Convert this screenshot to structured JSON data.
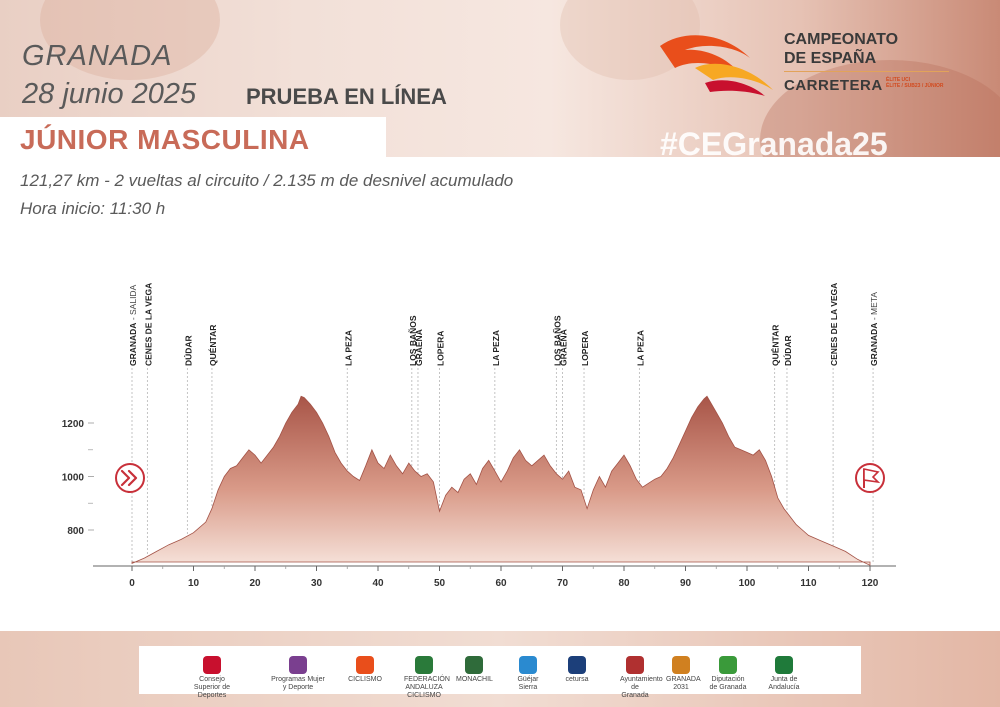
{
  "header": {
    "city": "GRANADA",
    "date": "28 junio 2025",
    "race": "PRUEBA EN LÍNEA",
    "category": "JÚNIOR MASCULINA",
    "hashtag": "#CEGranada25",
    "logo": {
      "line1": "CAMPEONATO",
      "line2": "DE ESPAÑA",
      "line3": "CARRETERA",
      "line4a": "ÉLITE UCI",
      "line4b": "ÉLITE / SUB23 / JÚNIOR"
    },
    "info_distance": "121,27 km - 2 vueltas al circuito / 2.135 m de desnivel acumulado",
    "info_start": "Hora inicio: 11:30 h"
  },
  "colors": {
    "accent": "#c86b58",
    "profile_dark": "#a85548",
    "profile_light": "#f2d6cc",
    "marker": "#c8303a"
  },
  "chart_data": {
    "type": "area",
    "title": "",
    "xlabel": "",
    "ylabel": "",
    "xlim": [
      0,
      125
    ],
    "ylim": [
      660,
      1400
    ],
    "xticks": [
      "0",
      "10",
      "20",
      "30",
      "40",
      "50",
      "60",
      "70",
      "80",
      "90",
      "100",
      "110",
      "120"
    ],
    "yticks": [
      "800",
      "1000",
      "1200"
    ],
    "series": [
      {
        "points": [
          [
            0,
            675
          ],
          [
            2,
            695
          ],
          [
            4,
            720
          ],
          [
            6,
            745
          ],
          [
            8,
            765
          ],
          [
            10,
            790
          ],
          [
            12,
            830
          ],
          [
            13,
            880
          ],
          [
            14,
            950
          ],
          [
            15,
            1000
          ],
          [
            16,
            1030
          ],
          [
            17,
            1040
          ],
          [
            18,
            1070
          ],
          [
            19,
            1100
          ],
          [
            20,
            1080
          ],
          [
            21,
            1050
          ],
          [
            22,
            1080
          ],
          [
            23,
            1110
          ],
          [
            24,
            1150
          ],
          [
            25,
            1200
          ],
          [
            26,
            1240
          ],
          [
            27,
            1270
          ],
          [
            27.5,
            1300
          ],
          [
            28,
            1295
          ],
          [
            29,
            1270
          ],
          [
            30,
            1240
          ],
          [
            31,
            1200
          ],
          [
            32,
            1150
          ],
          [
            33,
            1090
          ],
          [
            34,
            1050
          ],
          [
            35,
            1020
          ],
          [
            36,
            1000
          ],
          [
            37,
            985
          ],
          [
            38,
            1040
          ],
          [
            39,
            1100
          ],
          [
            40,
            1050
          ],
          [
            41,
            1030
          ],
          [
            42,
            1080
          ],
          [
            43,
            1040
          ],
          [
            44,
            1010
          ],
          [
            45,
            1050
          ],
          [
            46,
            1020
          ],
          [
            47,
            1000
          ],
          [
            48,
            1010
          ],
          [
            49,
            980
          ],
          [
            50,
            870
          ],
          [
            51,
            930
          ],
          [
            52,
            960
          ],
          [
            53,
            940
          ],
          [
            54,
            990
          ],
          [
            55,
            1010
          ],
          [
            56,
            970
          ],
          [
            57,
            1030
          ],
          [
            58,
            1060
          ],
          [
            59,
            1020
          ],
          [
            60,
            980
          ],
          [
            61,
            1020
          ],
          [
            62,
            1070
          ],
          [
            63,
            1100
          ],
          [
            64,
            1060
          ],
          [
            65,
            1040
          ],
          [
            66,
            1060
          ],
          [
            67,
            1080
          ],
          [
            68,
            1040
          ],
          [
            69,
            1010
          ],
          [
            70,
            990
          ],
          [
            71,
            1020
          ],
          [
            72,
            960
          ],
          [
            73,
            950
          ],
          [
            74,
            880
          ],
          [
            75,
            950
          ],
          [
            76,
            1000
          ],
          [
            77,
            960
          ],
          [
            78,
            1020
          ],
          [
            79,
            1050
          ],
          [
            80,
            1080
          ],
          [
            81,
            1040
          ],
          [
            82,
            990
          ],
          [
            83,
            960
          ],
          [
            84,
            975
          ],
          [
            85,
            990
          ],
          [
            86,
            1000
          ],
          [
            87,
            1030
          ],
          [
            88,
            1070
          ],
          [
            89,
            1120
          ],
          [
            90,
            1170
          ],
          [
            91,
            1220
          ],
          [
            92,
            1260
          ],
          [
            93,
            1290
          ],
          [
            93.5,
            1300
          ],
          [
            94,
            1280
          ],
          [
            95,
            1240
          ],
          [
            96,
            1200
          ],
          [
            97,
            1150
          ],
          [
            98,
            1110
          ],
          [
            99,
            1100
          ],
          [
            100,
            1090
          ],
          [
            101,
            1080
          ],
          [
            102,
            1100
          ],
          [
            103,
            1060
          ],
          [
            104,
            1000
          ],
          [
            105,
            920
          ],
          [
            106,
            880
          ],
          [
            107,
            850
          ],
          [
            108,
            820
          ],
          [
            109,
            800
          ],
          [
            110,
            780
          ],
          [
            112,
            760
          ],
          [
            114,
            740
          ],
          [
            116,
            720
          ],
          [
            118,
            690
          ],
          [
            120,
            668
          ]
        ]
      }
    ],
    "annotations": [
      {
        "km": 0,
        "label": "GRANADA",
        "sub": "- SALIDA"
      },
      {
        "km": 2.5,
        "label": "CENES DE LA VEGA",
        "sub": ""
      },
      {
        "km": 9,
        "label": "DÚDAR",
        "sub": ""
      },
      {
        "km": 13,
        "label": "QUÉNTAR",
        "sub": ""
      },
      {
        "km": 35,
        "label": "LA PEZA",
        "sub": ""
      },
      {
        "km": 45.5,
        "label": "LOS BAÑOS",
        "sub": ""
      },
      {
        "km": 46.5,
        "label": "GRAEÑA",
        "sub": ""
      },
      {
        "km": 50,
        "label": "LOPERA",
        "sub": ""
      },
      {
        "km": 59,
        "label": "LA PEZA",
        "sub": ""
      },
      {
        "km": 69,
        "label": "LOS BAÑOS",
        "sub": ""
      },
      {
        "km": 70,
        "label": "GRAEÑA",
        "sub": ""
      },
      {
        "km": 73.5,
        "label": "LOPERA",
        "sub": ""
      },
      {
        "km": 82.5,
        "label": "LA PEZA",
        "sub": ""
      },
      {
        "km": 104.5,
        "label": "QUÉNTAR",
        "sub": ""
      },
      {
        "km": 106.5,
        "label": "DÚDAR",
        "sub": ""
      },
      {
        "km": 114,
        "label": "CENES DE LA VEGA",
        "sub": ""
      },
      {
        "km": 120.5,
        "label": "GRANADA",
        "sub": "- META"
      }
    ]
  },
  "sponsors": [
    {
      "name": "Consejo Superior de Deportes"
    },
    {
      "name": "Programas Mujer y Deporte"
    },
    {
      "name": "CICLISMO"
    },
    {
      "name": "FEDERACIÓN ANDALUZA CICLISMO"
    },
    {
      "name": "MONACHIL"
    },
    {
      "name": "Güéjar Sierra"
    },
    {
      "name": "cetursa"
    },
    {
      "name": "Ayuntamiento de Granada"
    },
    {
      "name": "GRANADA 2031"
    },
    {
      "name": "Diputación de Granada"
    },
    {
      "name": "Junta de Andalucía"
    }
  ]
}
